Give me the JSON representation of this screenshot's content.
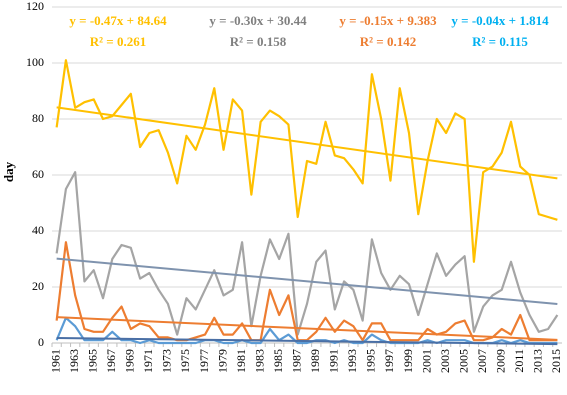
{
  "chart_data": {
    "type": "line",
    "y_label": "day",
    "categories": [
      "1961",
      null,
      "1963",
      null,
      "1965",
      null,
      "1967",
      null,
      "1969",
      null,
      "1971",
      null,
      "1973",
      null,
      "1975",
      null,
      "1977",
      null,
      "1979",
      null,
      "1981",
      null,
      "1983",
      null,
      "1985",
      null,
      "1987",
      null,
      "1989",
      null,
      "1991",
      null,
      "1993",
      null,
      "1995",
      null,
      "1997",
      null,
      "1999",
      null,
      "2001",
      null,
      "2003",
      null,
      "2005",
      null,
      "2007",
      null,
      "2009",
      null,
      "2011",
      null,
      "2013",
      null,
      "2015"
    ],
    "series": [
      {
        "color": "#FFC000",
        "values": [
          77,
          101,
          84,
          86,
          87,
          80,
          81,
          85,
          89,
          70,
          75,
          76,
          68,
          57,
          74,
          69,
          78,
          91,
          69,
          87,
          83,
          53,
          79,
          83,
          81,
          78,
          45,
          65,
          64,
          79,
          67,
          66,
          62,
          57,
          96,
          80,
          58,
          91,
          75,
          46,
          65,
          80,
          75,
          82,
          80,
          29,
          61,
          63,
          68,
          79,
          63,
          60,
          46,
          45,
          44
        ],
        "trend": {
          "label": "y = -0.47x + 84.64",
          "r2_label": "R² = 0.261",
          "slope": -0.47,
          "intercept": 84.64,
          "color": "#FFC000",
          "text_color": "#FFC000"
        }
      },
      {
        "color": "#A5A5A5",
        "values": [
          32,
          55,
          61,
          22,
          26,
          16,
          30,
          35,
          34,
          23,
          25,
          19,
          14,
          3,
          16,
          12,
          19,
          26,
          17,
          19,
          36,
          6,
          24,
          37,
          30,
          39,
          3,
          14,
          29,
          33,
          12,
          22,
          19,
          8,
          37,
          25,
          19,
          24,
          21,
          10,
          21,
          32,
          24,
          28,
          31,
          4,
          13,
          17,
          19,
          29,
          18,
          10,
          4,
          5,
          10
        ],
        "trend": {
          "label": "y = -0.30x + 30.44",
          "r2_label": "R² = 0.158",
          "slope": -0.3,
          "intercept": 30.44,
          "color": "#7F93AE",
          "text_color": "#808080"
        }
      },
      {
        "color": "#ED7D31",
        "values": [
          8,
          36,
          17,
          5,
          4,
          4,
          9,
          13,
          5,
          7,
          6,
          2,
          2,
          1,
          1,
          2,
          3,
          9,
          3,
          3,
          7,
          1,
          1,
          19,
          10,
          17,
          1,
          1,
          4,
          9,
          4,
          8,
          6,
          1,
          7,
          7,
          1,
          1,
          1,
          1,
          5,
          3,
          4,
          7,
          8,
          1,
          1,
          2,
          5,
          3,
          10,
          1,
          1,
          1,
          1
        ],
        "trend": {
          "label": "y = -0.15x + 9.383",
          "r2_label": "R² = 0.142",
          "slope": -0.15,
          "intercept": 9.383,
          "color": "#ED7D31",
          "text_color": "#ED7D31"
        }
      },
      {
        "color": "#5B9BD5",
        "values": [
          1,
          9,
          6,
          1,
          1,
          1,
          4,
          1,
          1,
          0,
          1,
          0,
          0,
          0,
          0,
          0,
          1,
          1,
          0,
          0,
          1,
          0,
          0,
          5,
          1,
          3,
          0,
          0,
          1,
          1,
          0,
          1,
          0,
          0,
          3,
          1,
          0,
          0,
          0,
          0,
          1,
          0,
          1,
          1,
          1,
          0,
          0,
          0,
          1,
          0,
          1,
          0,
          0,
          0,
          0
        ],
        "trend": {
          "label": "y = -0.04x + 1.814",
          "r2_label": "R² = 0.115",
          "slope": -0.04,
          "intercept": 1.814,
          "color": "#4A6FA5",
          "text_color": "#00B0F0"
        }
      }
    ],
    "ylim": [
      0,
      120
    ],
    "yticks": [
      0,
      20,
      40,
      60,
      80,
      100,
      120
    ],
    "grid": true
  }
}
